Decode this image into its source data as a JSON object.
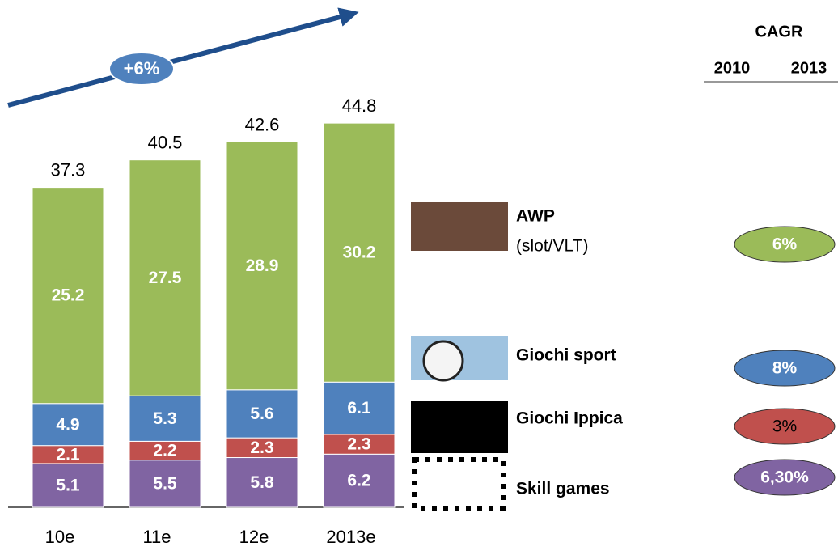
{
  "chart_data": {
    "type": "stacked-bar",
    "categories": [
      "10e",
      "11e",
      "12e",
      "2013e"
    ],
    "series": [
      {
        "name": "Skill games",
        "color": "#8064a2",
        "values": [
          5.1,
          5.5,
          5.8,
          6.2
        ]
      },
      {
        "name": "Giochi Ippica",
        "color": "#c0504d",
        "values": [
          2.1,
          2.2,
          2.3,
          2.3
        ]
      },
      {
        "name": "Giochi sport",
        "color": "#4f81bd",
        "values": [
          4.9,
          5.3,
          5.6,
          6.1
        ]
      },
      {
        "name": "AWP",
        "note": "(slot/VLT)",
        "color": "#9bbb59",
        "values": [
          25.2,
          27.5,
          28.9,
          30.2
        ]
      }
    ],
    "totals": [
      37.3,
      40.5,
      42.6,
      44.8
    ],
    "annotation": "+6%",
    "cagr": {
      "title": "CAGR",
      "years": [
        "2010",
        "2013"
      ],
      "values": [
        6.3,
        3,
        8,
        6
      ],
      "value_labels": [
        "6,30%",
        "3%",
        "8%",
        "6%"
      ]
    }
  }
}
